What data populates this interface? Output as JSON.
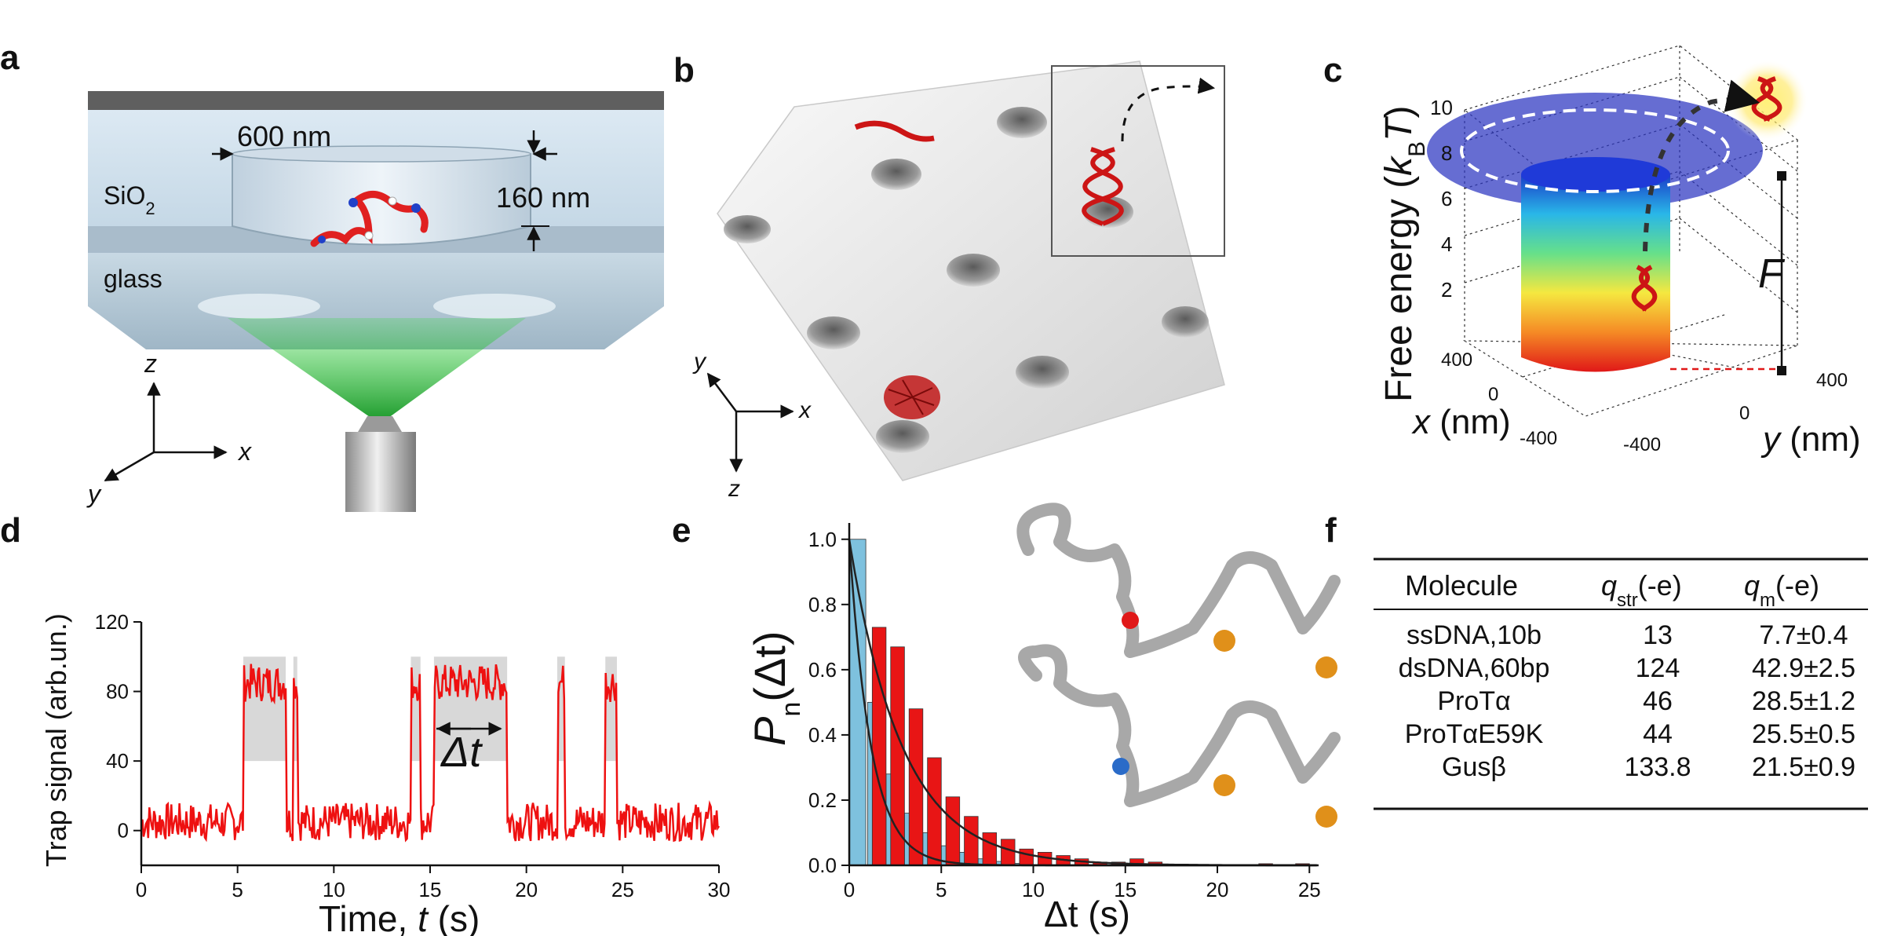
{
  "panels": {
    "a": {
      "label": "a",
      "dim_width": "600 nm",
      "dim_depth": "160 nm",
      "sio2_main": "SiO",
      "sio2_sub": "2",
      "glass": "glass",
      "axes": {
        "z": "z",
        "x": "x",
        "y": "y"
      }
    },
    "b": {
      "label": "b",
      "axes": {
        "x": "x",
        "y": "y",
        "z": "z"
      }
    },
    "c": {
      "label": "c",
      "zlabel_main": "Free energy (",
      "zlabel_k": "k",
      "zlabel_sub": "B",
      "zlabel_T": "T",
      "zlabel_close": ")",
      "z_ticks": [
        "10",
        "8",
        "6",
        "4",
        "2"
      ],
      "F_label": "F",
      "x_label": "x (nm)",
      "y_label": "y (nm)",
      "x_ticks": [
        "400",
        "0",
        "-400"
      ],
      "y_ticks": [
        "-400",
        "0",
        "400"
      ]
    },
    "d": {
      "label": "d",
      "ylabel": "Trap signal (arb.un.)",
      "xlabel_main": "Time, ",
      "xlabel_t": "t",
      "xlabel_unit": " (s)",
      "delta_t": "Δt"
    },
    "e": {
      "label": "e",
      "ylabel_P": "P",
      "ylabel_sub": "n",
      "ylabel_rest": "(Δt)",
      "xlabel": "Δt (s)"
    },
    "f": {
      "label": "f",
      "headers": {
        "molecule": "Molecule",
        "qstr_q": "q",
        "qstr_sub": "str",
        "qstr_unit": "(-e)",
        "qm_q": "q",
        "qm_sub": "m",
        "qm_unit": "(-e)"
      },
      "rows": [
        {
          "molecule": "ssDNA,10b",
          "qstr": "13",
          "qm": "7.7±0.4"
        },
        {
          "molecule": "dsDNA,60bp",
          "qstr": "124",
          "qm": "42.9±2.5"
        },
        {
          "molecule": "ProTα",
          "qstr": "46",
          "qm": "28.5±1.2"
        },
        {
          "molecule": "ProTαE59K",
          "qstr": "44",
          "qm": "25.5±0.5"
        },
        {
          "molecule": "Gusβ",
          "qstr": "133.8",
          "qm": "21.5±0.9"
        }
      ]
    }
  },
  "chart_data": [
    {
      "panel": "d",
      "type": "line",
      "xlim": [
        0,
        30
      ],
      "ylim": [
        -20,
        120
      ],
      "x_ticks": [
        0,
        5,
        10,
        15,
        20,
        25,
        30
      ],
      "y_ticks": [
        0,
        40,
        80,
        120
      ],
      "line_color": "#ee1111",
      "shade_color": "#d8d8d8",
      "trapped_intervals": [
        [
          5.3,
          7.5
        ],
        [
          7.9,
          8.1
        ],
        [
          14.0,
          14.5
        ],
        [
          15.2,
          19.0
        ],
        [
          21.6,
          22.0
        ],
        [
          24.1,
          24.7
        ]
      ],
      "baseline_level": 5,
      "trapped_level": 85,
      "shade_top": 100,
      "shade_bottom": 40
    },
    {
      "panel": "e",
      "type": "bar",
      "xlim": [
        0,
        25.5
      ],
      "ylim": [
        0,
        1.05
      ],
      "x_ticks": [
        0,
        5,
        10,
        15,
        20,
        25
      ],
      "y_ticks": [
        0.0,
        0.2,
        0.4,
        0.6,
        0.8,
        1.0
      ],
      "bin_width": 1,
      "series": [
        {
          "color": "#7ec1de",
          "x": [
            0,
            1,
            2,
            3,
            4,
            5,
            6,
            7,
            8,
            9
          ],
          "values": [
            1.0,
            0.5,
            0.28,
            0.16,
            0.1,
            0.06,
            0.04,
            0.02,
            0.012,
            0.006
          ]
        },
        {
          "color": "#e81515",
          "x": [
            1,
            2,
            3,
            4,
            5,
            6,
            7,
            8,
            9,
            10,
            11,
            12,
            13,
            14,
            15,
            16,
            22,
            24
          ],
          "values": [
            0.73,
            0.67,
            0.48,
            0.33,
            0.21,
            0.15,
            0.1,
            0.08,
            0.05,
            0.04,
            0.03,
            0.02,
            0.01,
            0.01,
            0.02,
            0.01,
            0.005,
            0.005
          ]
        }
      ],
      "fit_curves": [
        {
          "amplitude": 1.0,
          "rate": 0.85
        },
        {
          "amplitude": 1.0,
          "rate": 0.35
        }
      ]
    }
  ]
}
